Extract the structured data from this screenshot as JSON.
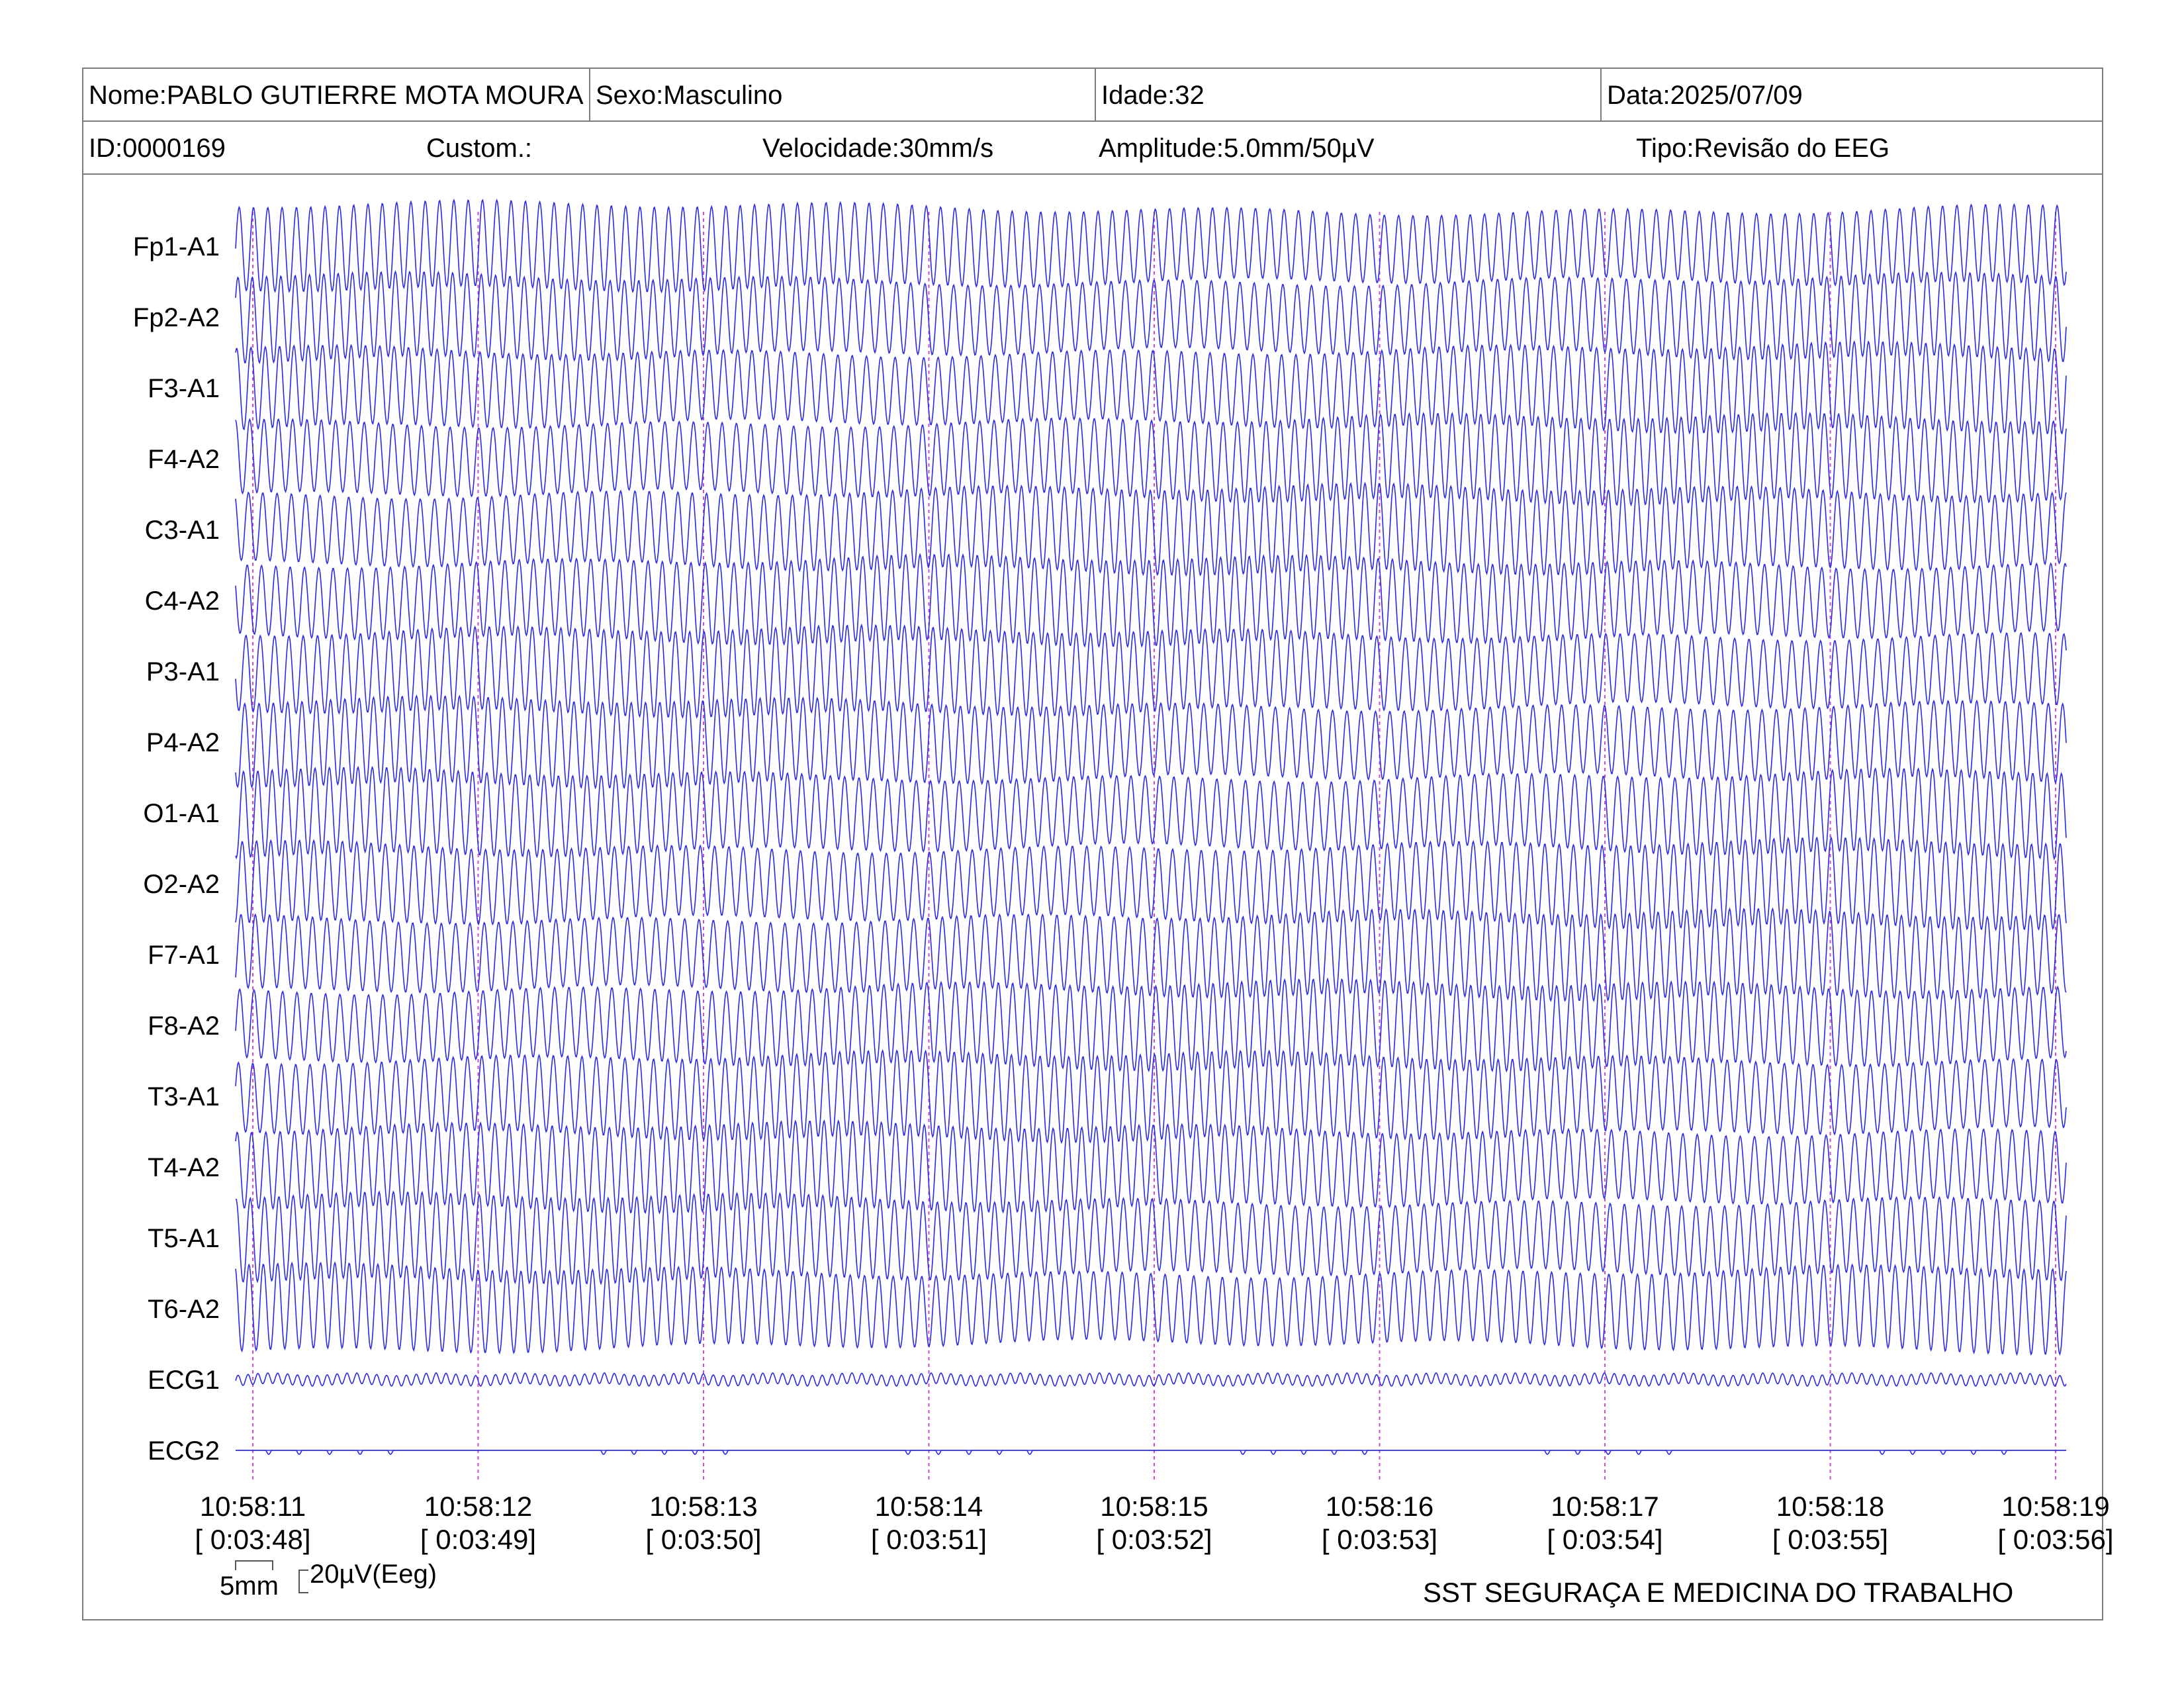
{
  "header": {
    "nome": "Nome:PABLO GUTIERRE MOTA MOURA",
    "sexo": "Sexo:Masculino",
    "idade": "Idade:32",
    "data": "Data:2025/07/09",
    "id": "ID:0000169",
    "custom": "Custom.:",
    "velocidade": "Velocidade:30mm/s",
    "amplitude": "Amplitude:5.0mm/50µV",
    "tipo": "Tipo:Revisão do EEG"
  },
  "channels": [
    "Fp1-A1",
    "Fp2-A2",
    "F3-A1",
    "F4-A2",
    "C3-A1",
    "C4-A2",
    "P3-A1",
    "P4-A2",
    "O1-A1",
    "O2-A2",
    "F7-A1",
    "F8-A2",
    "T3-A1",
    "T4-A2",
    "T5-A1",
    "T6-A2",
    "ECG1",
    "ECG2"
  ],
  "time_marks": [
    {
      "clock": "10:58:11",
      "elapsed": "[ 0:03:48]"
    },
    {
      "clock": "10:58:12",
      "elapsed": "[ 0:03:49]"
    },
    {
      "clock": "10:58:13",
      "elapsed": "[ 0:03:50]"
    },
    {
      "clock": "10:58:14",
      "elapsed": "[ 0:03:51]"
    },
    {
      "clock": "10:58:15",
      "elapsed": "[ 0:03:52]"
    },
    {
      "clock": "10:58:16",
      "elapsed": "[ 0:03:53]"
    },
    {
      "clock": "10:58:17",
      "elapsed": "[ 0:03:54]"
    },
    {
      "clock": "10:58:18",
      "elapsed": "[ 0:03:55]"
    },
    {
      "clock": "10:58:19",
      "elapsed": "[ 0:03:56]"
    }
  ],
  "scale": {
    "time": "5mm",
    "amplitude": "20µV(Eeg)"
  },
  "footer": {
    "company": "SST SEGURAÇA E MEDICINA DO TRABALHO"
  },
  "colors": {
    "trace": "#2a2ae8",
    "time_marker": "#d24bd2",
    "border": "#7a7a7a"
  }
}
